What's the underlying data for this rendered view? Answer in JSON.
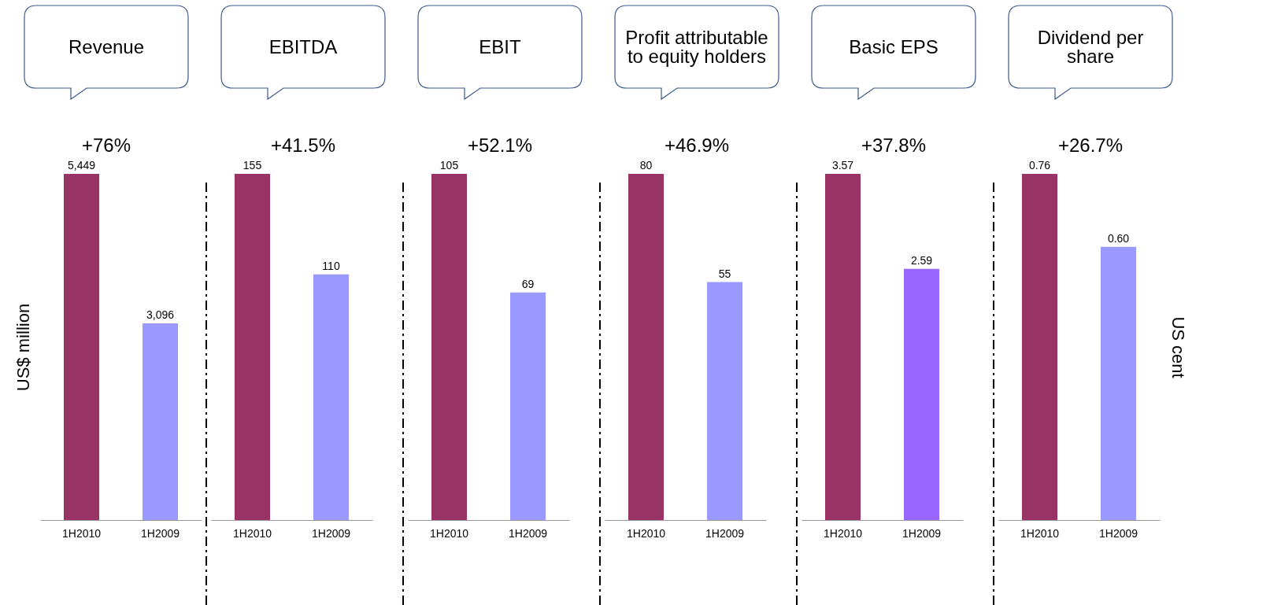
{
  "chart_data": [
    {
      "type": "bar",
      "title": "Revenue",
      "subtitle": "+76%",
      "ylabel": "US$ million",
      "categories": [
        "1H2010",
        "1H2009"
      ],
      "values": [
        5449,
        3096
      ],
      "value_labels": [
        "5,449",
        "3,096"
      ],
      "colors": [
        "#993366",
        "#9999ff"
      ]
    },
    {
      "type": "bar",
      "title": "EBITDA",
      "subtitle": "+41.5%",
      "categories": [
        "1H2010",
        "1H2009"
      ],
      "values": [
        155,
        110
      ],
      "value_labels": [
        "155",
        "110"
      ],
      "colors": [
        "#993366",
        "#9999ff"
      ]
    },
    {
      "type": "bar",
      "title": "EBIT",
      "subtitle": "+52.1%",
      "categories": [
        "1H2010",
        "1H2009"
      ],
      "values": [
        105,
        69
      ],
      "value_labels": [
        "105",
        "69"
      ],
      "colors": [
        "#993366",
        "#9999ff"
      ]
    },
    {
      "type": "bar",
      "title": "Profit attributable to equity holders",
      "subtitle": "+46.9%",
      "categories": [
        "1H2010",
        "1H2009"
      ],
      "values": [
        80,
        55
      ],
      "value_labels": [
        "80",
        "55"
      ],
      "colors": [
        "#993366",
        "#9999ff"
      ]
    },
    {
      "type": "bar",
      "title": "Basic EPS",
      "subtitle": "+37.8%",
      "categories": [
        "1H2010",
        "1H2009"
      ],
      "values": [
        3.57,
        2.59
      ],
      "value_labels": [
        "3.57",
        "2.59"
      ],
      "colors": [
        "#993366",
        "#9966ff"
      ]
    },
    {
      "type": "bar",
      "title": "Dividend per share",
      "subtitle": "+26.7%",
      "ylabel": "US cent",
      "categories": [
        "1H2010",
        "1H2009"
      ],
      "values": [
        0.76,
        0.6
      ],
      "value_labels": [
        "0.76",
        "0.60"
      ],
      "colors": [
        "#993366",
        "#9999ff"
      ]
    }
  ]
}
